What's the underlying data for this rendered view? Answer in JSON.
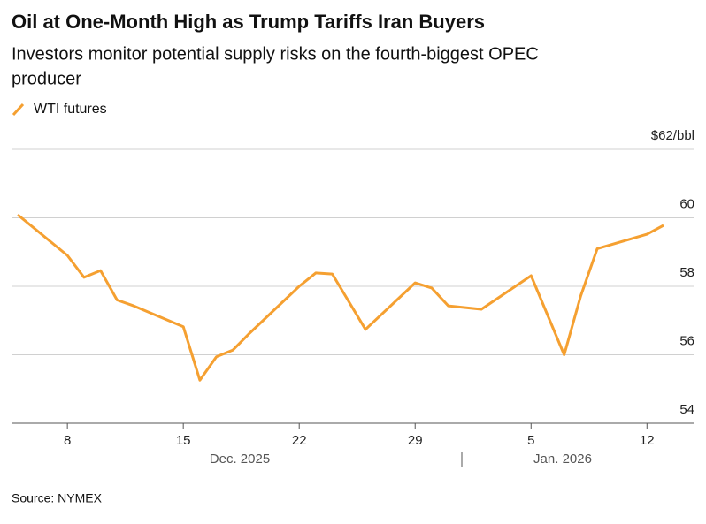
{
  "chart_data": {
    "type": "line",
    "title": "Oil at One-Month High as Trump Tariffs Iran Buyers",
    "subtitle": [
      "Investors monitor potential supply risks on the fourth-biggest OPEC",
      "producer"
    ],
    "source": "Source: NYMEX",
    "month_labels": [
      "Dec. 2025",
      "Jan. 2026"
    ],
    "x": [
      "2025-12-05",
      "2025-12-08",
      "2025-12-09",
      "2025-12-10",
      "2025-12-11",
      "2025-12-12",
      "2025-12-15",
      "2025-12-16",
      "2025-12-17",
      "2025-12-18",
      "2025-12-19",
      "2025-12-22",
      "2025-12-23",
      "2025-12-24",
      "2025-12-26",
      "2025-12-29",
      "2025-12-30",
      "2025-12-31",
      "2026-01-02",
      "2026-01-05",
      "2026-01-07",
      "2026-01-08",
      "2026-01-09",
      "2026-01-12",
      "2026-01-13"
    ],
    "series": [
      {
        "name": "WTI futures",
        "color": "#f5a031",
        "values": [
          60.09,
          58.9,
          58.26,
          58.46,
          57.6,
          57.43,
          56.82,
          55.26,
          55.94,
          56.14,
          56.63,
          58.0,
          58.39,
          58.36,
          56.74,
          58.1,
          57.95,
          57.43,
          57.33,
          58.31,
          56.0,
          57.72,
          59.1,
          59.52,
          59.78
        ]
      }
    ],
    "xlim": [
      "2025-12-05",
      "2026-01-13"
    ],
    "xticks": [
      {
        "value": "2025-12-08",
        "label": "8"
      },
      {
        "value": "2025-12-15",
        "label": "15"
      },
      {
        "value": "2025-12-22",
        "label": "22"
      },
      {
        "value": "2025-12-29",
        "label": "29"
      },
      {
        "value": "2026-01-05",
        "label": "5"
      },
      {
        "value": "2026-01-12",
        "label": "12"
      }
    ],
    "ylim": [
      54,
      62
    ],
    "yticks": [
      54,
      56,
      58,
      60,
      {
        "value": 62,
        "label": "$62/bbl"
      }
    ],
    "grid": true
  }
}
